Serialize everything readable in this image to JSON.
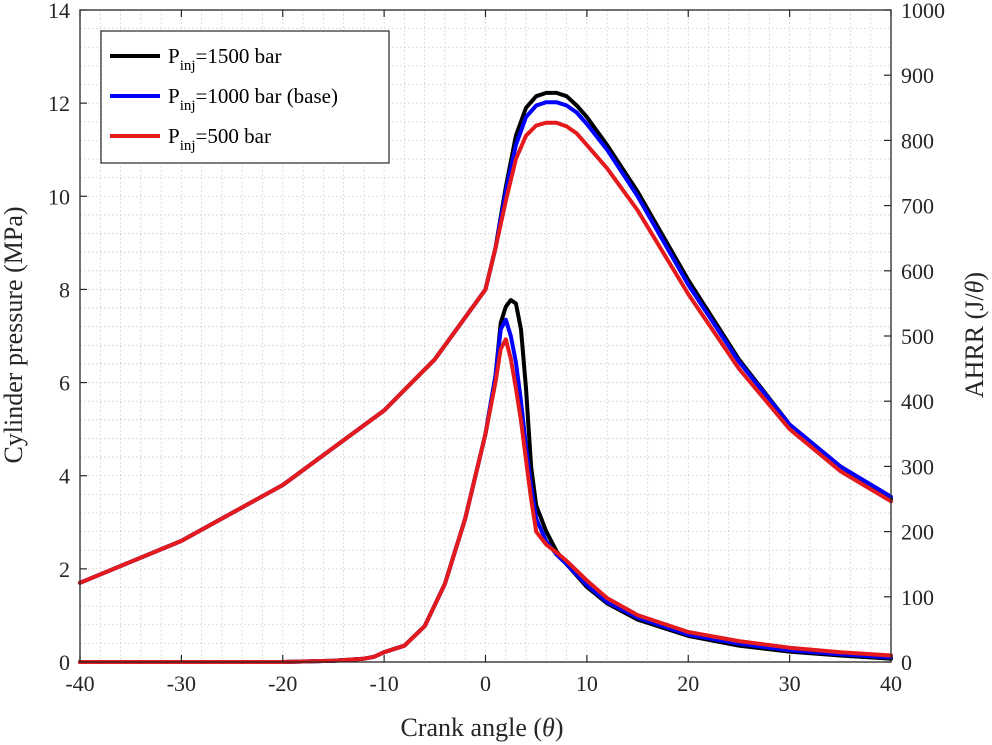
{
  "chart_data": {
    "type": "line",
    "xlabel": "Crank angle (",
    "xlabel_symbol": "θ",
    "xlabel_close": ")",
    "ylabel": "Cylinder pressure (MPa)",
    "y2label": "AHRR (J/",
    "y2label_symbol": "θ",
    "y2label_close": ")",
    "xlim": [
      -40,
      40
    ],
    "ylim": [
      0,
      14
    ],
    "y2lim": [
      0,
      1000
    ],
    "xticks": [
      "-40",
      "-30",
      "-20",
      "-10",
      "0",
      "10",
      "20",
      "30",
      "40"
    ],
    "yticks": [
      "0",
      "2",
      "4",
      "6",
      "8",
      "10",
      "12",
      "14"
    ],
    "y2ticks": [
      "0",
      "100",
      "200",
      "300",
      "400",
      "500",
      "600",
      "700",
      "800",
      "900",
      "1000"
    ],
    "grid": true,
    "legend_position": "top-left",
    "series": [
      {
        "key": "p1500",
        "legend_main": "P",
        "legend_sub": "inj",
        "legend_rest": "=1500 bar",
        "color": "#000000",
        "pressure": {
          "x": [
            -40,
            -30,
            -20,
            -10,
            -5,
            0,
            1,
            2,
            3,
            4,
            5,
            6,
            7,
            8,
            9,
            10,
            12,
            15,
            20,
            25,
            30,
            35,
            40
          ],
          "y": [
            1.7,
            2.6,
            3.8,
            5.4,
            6.5,
            8.0,
            8.9,
            10.2,
            11.3,
            11.9,
            12.15,
            12.22,
            12.22,
            12.15,
            11.95,
            11.7,
            11.1,
            10.1,
            8.2,
            6.5,
            5.1,
            4.2,
            3.5
          ]
        },
        "ahrr": {
          "x": [
            -40,
            -20,
            -15,
            -12,
            -11,
            -10,
            -8,
            -6,
            -4,
            -2,
            0,
            1,
            1.5,
            2,
            2.5,
            3,
            3.5,
            4,
            4.5,
            5,
            6,
            7,
            8,
            10,
            12,
            15,
            20,
            25,
            30,
            35,
            40
          ],
          "y": [
            0,
            0,
            2,
            5,
            8,
            15,
            25,
            55,
            120,
            220,
            350,
            440,
            520,
            545,
            555,
            550,
            510,
            420,
            300,
            240,
            200,
            170,
            150,
            115,
            90,
            65,
            40,
            25,
            16,
            10,
            5
          ]
        }
      },
      {
        "key": "p1000",
        "legend_main": "P",
        "legend_sub": "inj",
        "legend_rest": "=1000 bar (base)",
        "color": "#0000ff",
        "pressure": {
          "x": [
            -40,
            -30,
            -20,
            -10,
            -5,
            0,
            1,
            2,
            3,
            4,
            5,
            6,
            7,
            8,
            9,
            10,
            12,
            15,
            20,
            25,
            30,
            35,
            40
          ],
          "y": [
            1.7,
            2.6,
            3.8,
            5.4,
            6.5,
            8.0,
            8.9,
            10.1,
            11.1,
            11.7,
            11.95,
            12.02,
            12.02,
            11.95,
            11.8,
            11.55,
            11.0,
            10.0,
            8.1,
            6.45,
            5.1,
            4.2,
            3.55
          ]
        },
        "ahrr": {
          "x": [
            -40,
            -20,
            -15,
            -12,
            -11,
            -10,
            -8,
            -6,
            -4,
            -2,
            0,
            1,
            1.5,
            2,
            2.5,
            3,
            3.5,
            4,
            4.5,
            5,
            6,
            7,
            8,
            10,
            12,
            15,
            20,
            25,
            30,
            35,
            40
          ],
          "y": [
            0,
            0,
            2,
            5,
            8,
            15,
            25,
            55,
            120,
            220,
            350,
            440,
            510,
            525,
            500,
            460,
            400,
            330,
            270,
            220,
            185,
            165,
            150,
            118,
            92,
            68,
            42,
            28,
            18,
            12,
            7
          ]
        }
      },
      {
        "key": "p500",
        "legend_main": "P",
        "legend_sub": "inj",
        "legend_rest": "=500 bar",
        "color": "#e41a1c",
        "pressure": {
          "x": [
            -40,
            -30,
            -20,
            -10,
            -5,
            0,
            1,
            2,
            3,
            4,
            5,
            6,
            7,
            8,
            9,
            10,
            12,
            15,
            20,
            25,
            30,
            35,
            40
          ],
          "y": [
            1.7,
            2.6,
            3.8,
            5.4,
            6.5,
            8.0,
            8.9,
            9.9,
            10.8,
            11.3,
            11.52,
            11.58,
            11.58,
            11.5,
            11.35,
            11.1,
            10.6,
            9.7,
            7.9,
            6.3,
            5.0,
            4.1,
            3.45
          ]
        },
        "ahrr": {
          "x": [
            -40,
            -20,
            -15,
            -12,
            -11,
            -10,
            -8,
            -6,
            -4,
            -2,
            0,
            1,
            1.5,
            2,
            2.5,
            3,
            3.5,
            4,
            4.5,
            5,
            6,
            7,
            8,
            10,
            12,
            15,
            20,
            25,
            30,
            35,
            40
          ],
          "y": [
            0,
            0,
            2,
            5,
            8,
            15,
            25,
            55,
            120,
            220,
            350,
            430,
            480,
            495,
            465,
            420,
            370,
            310,
            250,
            200,
            180,
            168,
            155,
            125,
            98,
            72,
            46,
            32,
            22,
            15,
            10
          ]
        }
      }
    ]
  }
}
